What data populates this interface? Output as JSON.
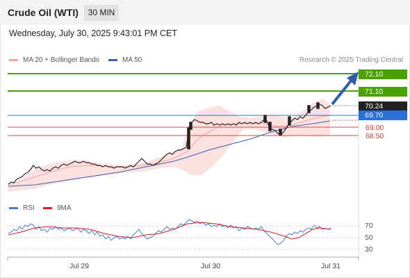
{
  "header": {
    "title": "Crude Oil (WTI)",
    "interval": "30 MIN"
  },
  "datetime": "Wednesday, July 30, 2025 9:43:01 PM CET",
  "legend": {
    "ma20": "MA 20 + Bollinger Bands",
    "ma50": "MA 50",
    "credit": "Research © 2025 Trading Central",
    "rsi": "RSI",
    "ma9": "9MA"
  },
  "colors": {
    "bollinger": "#f08080",
    "ma50": "#3a5ea8",
    "resistance": "#4aa100",
    "support": "#d84b4b",
    "pivot": "#2d6fd6",
    "current": "#222222",
    "arrow": "#2c5fa8",
    "rsi": "#4a7bd0",
    "rsi_ma": "#d62020"
  },
  "price_levels": {
    "r2": "72.10",
    "r1": "71.10",
    "current": "70.24",
    "pivot": "69.70",
    "s1": "69.00",
    "s2": "68.50"
  },
  "rsi_axis": [
    "70",
    "50",
    "30"
  ],
  "x_axis": [
    "Jul 29",
    "Jul 30",
    "Jul 31"
  ]
}
